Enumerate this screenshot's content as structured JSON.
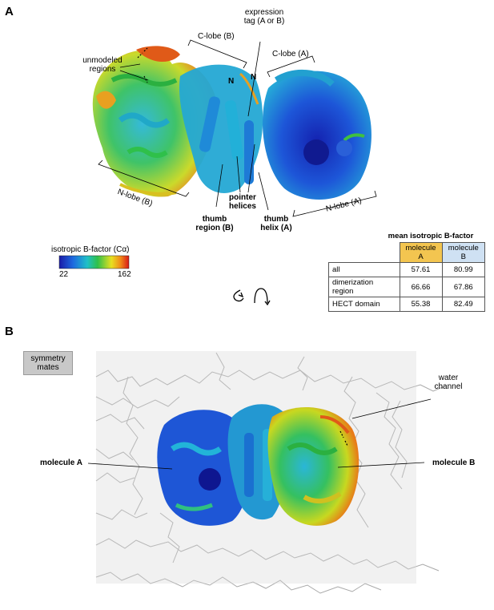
{
  "panel_a": {
    "letter": "A",
    "labels": {
      "expression_tag": [
        "expression",
        "tag (A or B)"
      ],
      "c_lobe_b": "C-lobe (B)",
      "c_lobe_a": "C-lobe (A)",
      "n_term_1": "N",
      "n_term_2": "N",
      "unmodeled": [
        "unmodeled",
        "regions"
      ],
      "n_lobe_b": "N-lobe (B)",
      "n_lobe_a": "N-lobe (A)",
      "pointer_helices": [
        "pointer",
        "helices"
      ],
      "thumb_region_b": [
        "thumb",
        "region (B)"
      ],
      "thumb_helix_a": [
        "thumb",
        "helix (A)"
      ]
    },
    "colorbar": {
      "title": "isotropic B-factor (Cα)",
      "min": "22",
      "max": "162"
    },
    "table": {
      "title": "mean isotropic B-factor",
      "headers": [
        "molecule A",
        "molecule B"
      ],
      "rows": [
        {
          "label": "all",
          "a": "57.61",
          "b": "80.99"
        },
        {
          "label": "dimerization region",
          "a": "66.66",
          "b": "67.86"
        },
        {
          "label": "HECT domain",
          "a": "55.38",
          "b": "82.49"
        }
      ]
    }
  },
  "panel_b": {
    "letter": "B",
    "labels": {
      "symmetry_mates": [
        "symmetry",
        "mates"
      ],
      "water_channel": [
        "water",
        "channel"
      ],
      "molecule_a": "molecule A",
      "molecule_b": "molecule B"
    }
  },
  "colors": {
    "low": "#1a2fd0",
    "mid": "#22c05a",
    "high": "#e0201a",
    "col_a": "#f3c550",
    "col_b": "#cfe1f3",
    "sym_grey": "#c8c8c8"
  }
}
